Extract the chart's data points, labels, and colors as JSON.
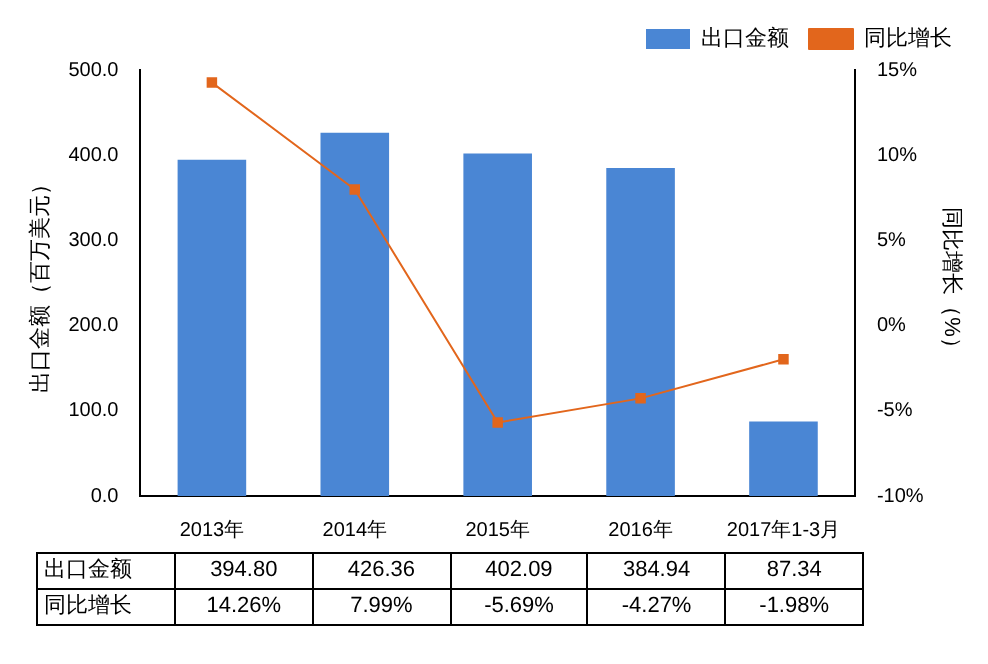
{
  "chart_data": {
    "type": "bar",
    "categories": [
      "2013年",
      "2014年",
      "2015年",
      "2016年",
      "2017年1-3月"
    ],
    "ylabel": "出口金额（百万美元）",
    "y2label": "同比增长（%）",
    "ylim": [
      0,
      500
    ],
    "yticks": [
      {
        "value": 0,
        "label": "0.0"
      },
      {
        "value": 100,
        "label": "100.0"
      },
      {
        "value": 200,
        "label": "200.0"
      },
      {
        "value": 300,
        "label": "300.0"
      },
      {
        "value": 400,
        "label": "400.0"
      },
      {
        "value": 500,
        "label": "500.0"
      }
    ],
    "y2lim": [
      -10,
      15
    ],
    "y2ticks": [
      {
        "value": -10,
        "label": "-10%"
      },
      {
        "value": -5,
        "label": "-5%"
      },
      {
        "value": 0,
        "label": "0%"
      },
      {
        "value": 5,
        "label": "5%"
      },
      {
        "value": 10,
        "label": "10%"
      },
      {
        "value": 15,
        "label": "15%"
      }
    ],
    "series": [
      {
        "name": "出口金额",
        "color": "#4a86d4",
        "values": [
          394.8,
          426.36,
          402.09,
          384.94,
          87.34
        ],
        "value_labels": [
          "394.80",
          "426.36",
          "402.09",
          "384.94",
          "87.34"
        ]
      },
      {
        "name": "同比增长",
        "type": "line",
        "axis": "y2",
        "color": "#e2661c",
        "marker": "square",
        "values": [
          14.26,
          7.99,
          -5.69,
          -4.27,
          -1.98
        ],
        "value_labels": [
          "14.26%",
          "7.99%",
          "-5.69%",
          "-4.27%",
          "-1.98%"
        ]
      }
    ],
    "legend": "top right",
    "grid": false
  }
}
